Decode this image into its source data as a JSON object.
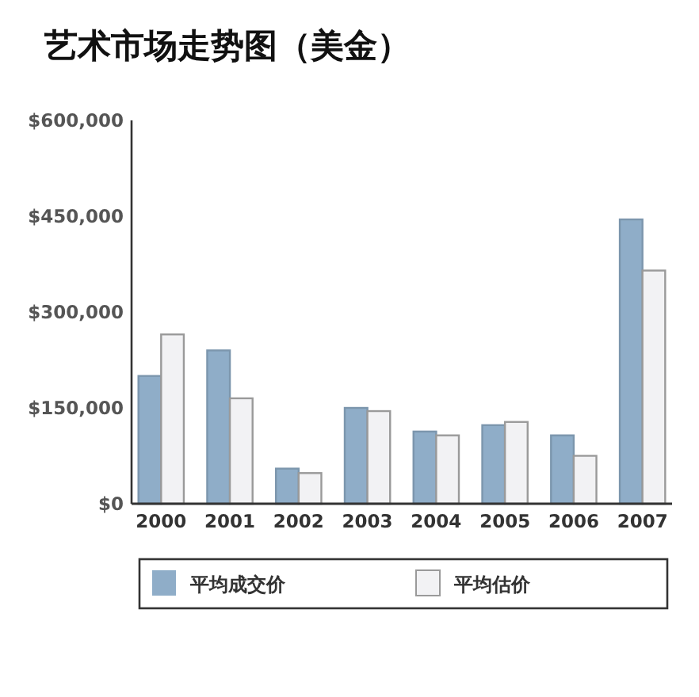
{
  "chart_data": {
    "type": "bar",
    "title": "艺术市场走势图（美金）",
    "categories": [
      "2000",
      "2001",
      "2002",
      "2003",
      "2004",
      "2005",
      "2006",
      "2007"
    ],
    "series": [
      {
        "name": "平均成交价",
        "color": "#8fadc8",
        "values": [
          200000,
          240000,
          55000,
          150000,
          113000,
          123000,
          107000,
          445000
        ]
      },
      {
        "name": "平均估价",
        "color": "#f2f2f4",
        "values": [
          265000,
          165000,
          48000,
          145000,
          107000,
          128000,
          75000,
          365000
        ]
      }
    ],
    "ylim": [
      0,
      600000
    ],
    "yticks": [
      {
        "value": 0,
        "label": "$0"
      },
      {
        "value": 150000,
        "label": "$150,000"
      },
      {
        "value": 300000,
        "label": "$300,000"
      },
      {
        "value": 450000,
        "label": "$450,000"
      },
      {
        "value": 600000,
        "label": "$600,000"
      }
    ],
    "grid": false,
    "legend": "bottom"
  }
}
